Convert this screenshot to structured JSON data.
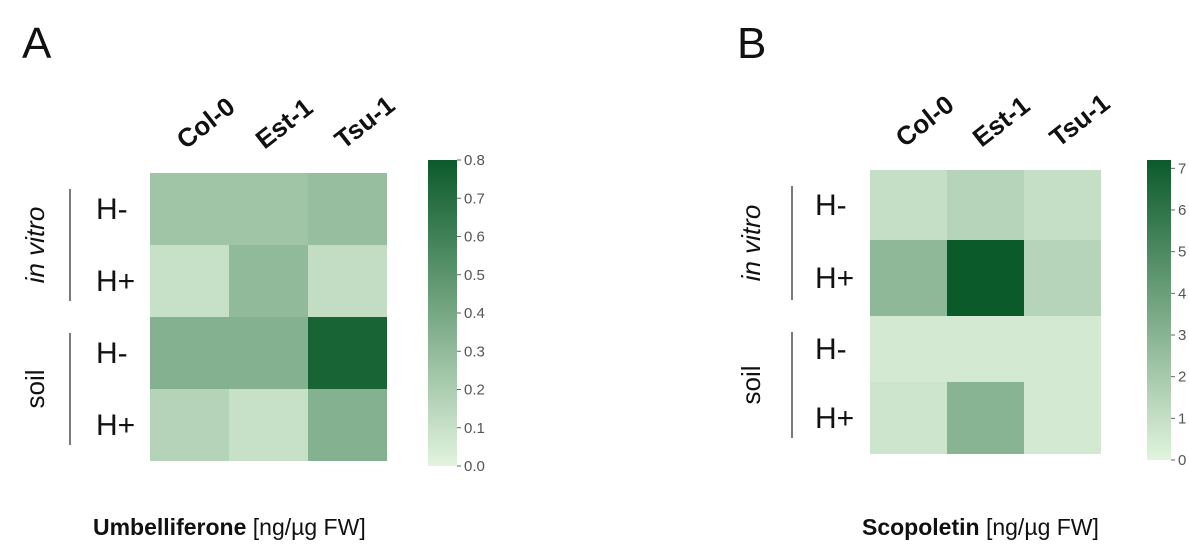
{
  "chart_data": [
    {
      "type": "heatmap",
      "panel": "A",
      "columns": [
        "Col-0",
        "Est-1",
        "Tsu-1"
      ],
      "groups": [
        {
          "label": "in vitro",
          "rows": [
            "H-",
            "H+"
          ]
        },
        {
          "label": "soil",
          "rows": [
            "H-",
            "H+"
          ]
        }
      ],
      "values": [
        [
          0.25,
          0.25,
          0.28
        ],
        [
          0.1,
          0.3,
          0.12
        ],
        [
          0.35,
          0.35,
          0.75
        ],
        [
          0.17,
          0.1,
          0.35
        ]
      ],
      "colorbar": {
        "min": 0.0,
        "max": 0.8,
        "ticks": [
          "0.0",
          "0.1",
          "0.2",
          "0.3",
          "0.4",
          "0.5",
          "0.6",
          "0.7",
          "0.8"
        ]
      },
      "caption_bold": "Umbelliferone",
      "caption_rest": " [ng/µg FW]",
      "colors": {
        "low": "#e2f4de",
        "high": "#0b5a2a"
      }
    },
    {
      "type": "heatmap",
      "panel": "B",
      "columns": [
        "Col-0",
        "Est-1",
        "Tsu-1"
      ],
      "groups": [
        {
          "label": "in vitro",
          "rows": [
            "H-",
            "H+"
          ]
        },
        {
          "label": "soil",
          "rows": [
            "H-",
            "H+"
          ]
        }
      ],
      "values": [
        [
          1.0,
          1.5,
          1.0
        ],
        [
          2.8,
          7.2,
          1.5
        ],
        [
          0.5,
          0.5,
          0.5
        ],
        [
          0.7,
          3.0,
          0.5
        ]
      ],
      "colorbar": {
        "min": 0,
        "max": 7.2,
        "ticks": [
          "0",
          "1",
          "2",
          "3",
          "4",
          "5",
          "6",
          "7"
        ]
      },
      "caption_bold": "Scopoletin",
      "caption_rest": " [ng/µg FW]",
      "colors": {
        "low": "#e2f4de",
        "high": "#0b5a2a"
      }
    }
  ]
}
